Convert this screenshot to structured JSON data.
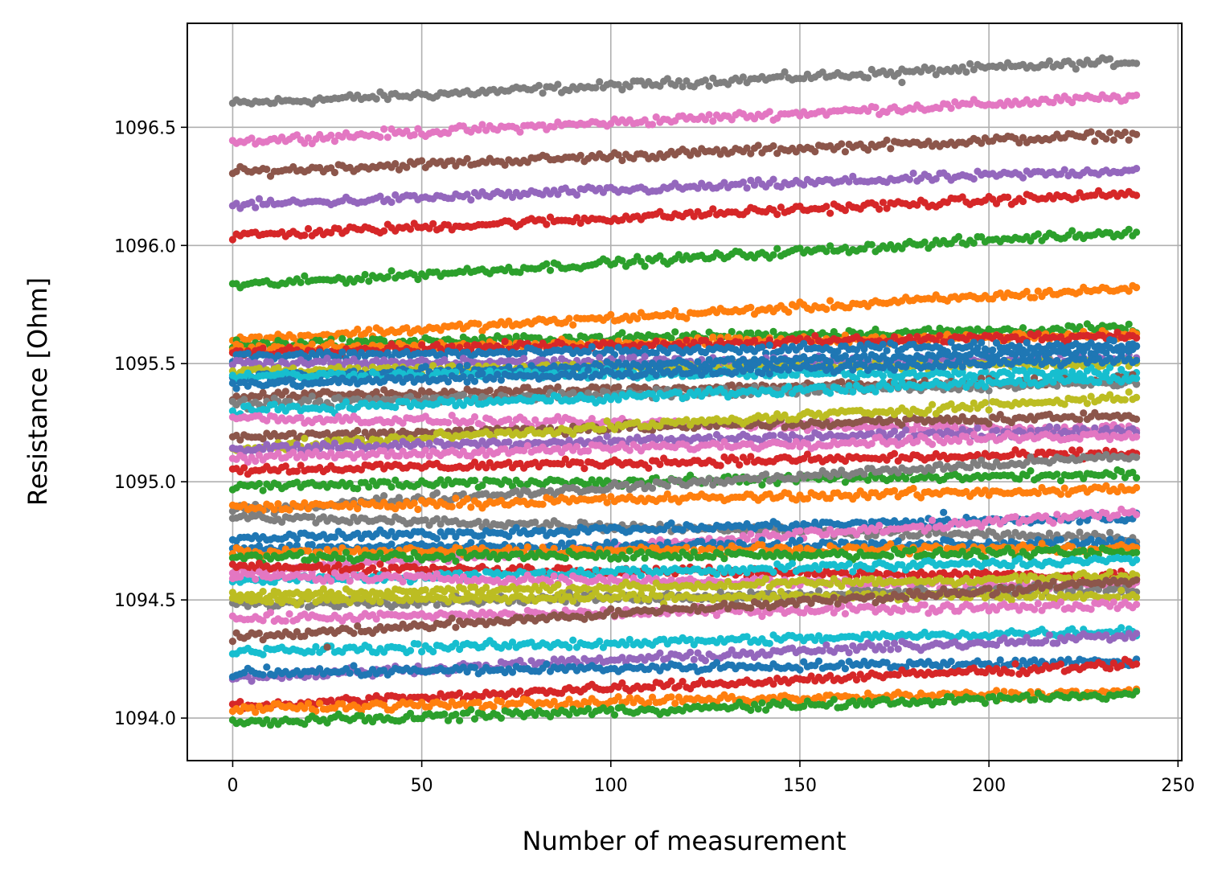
{
  "chart_data": {
    "type": "scatter",
    "title": "",
    "xlabel": "Number of measurement",
    "ylabel": "Resistance [Ohm]",
    "xlim": [
      -12,
      251
    ],
    "ylim": [
      1093.82,
      1096.94
    ],
    "xticks": [
      0,
      50,
      100,
      150,
      200,
      250
    ],
    "xtick_labels": [
      "0",
      "50",
      "100",
      "150",
      "200",
      "250"
    ],
    "yticks": [
      1094.0,
      1094.5,
      1095.0,
      1095.5,
      1096.0,
      1096.5
    ],
    "ytick_labels": [
      "1094.0",
      "1094.5",
      "1095.0",
      "1095.5",
      "1096.0",
      "1096.5"
    ],
    "grid": true,
    "legend": "none",
    "n_points_per_series": 240,
    "x_range": [
      0,
      239
    ],
    "series": [
      {
        "color": "#7f7f7f",
        "start": 1096.6,
        "end": 1096.78
      },
      {
        "color": "#e377c2",
        "start": 1096.44,
        "end": 1096.63
      },
      {
        "color": "#8c564b",
        "start": 1096.31,
        "end": 1096.47
      },
      {
        "color": "#9467bd",
        "start": 1096.17,
        "end": 1096.32
      },
      {
        "color": "#d62728",
        "start": 1096.04,
        "end": 1096.22
      },
      {
        "color": "#2ca02c",
        "start": 1095.83,
        "end": 1096.06
      },
      {
        "color": "#ff7f0e",
        "start": 1095.6,
        "end": 1095.82
      },
      {
        "color": "#2ca02c",
        "start": 1095.58,
        "end": 1095.65
      },
      {
        "color": "#ff7f0e",
        "start": 1095.56,
        "end": 1095.62
      },
      {
        "color": "#d62728",
        "start": 1095.55,
        "end": 1095.62
      },
      {
        "color": "#1f77b4",
        "start": 1095.53,
        "end": 1095.58
      },
      {
        "color": "#9467bd",
        "start": 1095.5,
        "end": 1095.52
      },
      {
        "color": "#bcbd22",
        "start": 1095.47,
        "end": 1095.5
      },
      {
        "color": "#1f77b4",
        "start": 1095.44,
        "end": 1095.56
      },
      {
        "color": "#17becf",
        "start": 1095.45,
        "end": 1095.46
      },
      {
        "color": "#1f77b4",
        "start": 1095.41,
        "end": 1095.52
      },
      {
        "color": "#8c564b",
        "start": 1095.36,
        "end": 1095.43
      },
      {
        "color": "#7f7f7f",
        "start": 1095.33,
        "end": 1095.42
      },
      {
        "color": "#17becf",
        "start": 1095.3,
        "end": 1095.44
      },
      {
        "color": "#e377c2",
        "start": 1095.27,
        "end": 1095.22
      },
      {
        "color": "#8c564b",
        "start": 1095.19,
        "end": 1095.28
      },
      {
        "color": "#bcbd22",
        "start": 1095.14,
        "end": 1095.36
      },
      {
        "color": "#9467bd",
        "start": 1095.14,
        "end": 1095.22
      },
      {
        "color": "#e377c2",
        "start": 1095.1,
        "end": 1095.2
      },
      {
        "color": "#d62728",
        "start": 1095.05,
        "end": 1095.12
      },
      {
        "color": "#2ca02c",
        "start": 1094.98,
        "end": 1095.03
      },
      {
        "color": "#7f7f7f",
        "start": 1094.88,
        "end": 1095.11
      },
      {
        "color": "#ff7f0e",
        "start": 1094.89,
        "end": 1094.97
      },
      {
        "color": "#7f7f7f",
        "start": 1094.85,
        "end": 1094.76
      },
      {
        "color": "#1f77b4",
        "start": 1094.76,
        "end": 1094.85
      },
      {
        "color": "#e377c2",
        "start": 1094.62,
        "end": 1094.87
      },
      {
        "color": "#1f77b4",
        "start": 1094.72,
        "end": 1094.74
      },
      {
        "color": "#ff7f0e",
        "start": 1094.7,
        "end": 1094.72
      },
      {
        "color": "#2ca02c",
        "start": 1094.68,
        "end": 1094.7
      },
      {
        "color": "#d62728",
        "start": 1094.64,
        "end": 1094.6
      },
      {
        "color": "#17becf",
        "start": 1094.58,
        "end": 1094.67
      },
      {
        "color": "#e377c2",
        "start": 1094.6,
        "end": 1094.56
      },
      {
        "color": "#bcbd22",
        "start": 1094.52,
        "end": 1094.6
      },
      {
        "color": "#7f7f7f",
        "start": 1094.48,
        "end": 1094.55
      },
      {
        "color": "#bcbd22",
        "start": 1094.5,
        "end": 1094.52
      },
      {
        "color": "#e377c2",
        "start": 1094.42,
        "end": 1094.48
      },
      {
        "color": "#8c564b",
        "start": 1094.34,
        "end": 1094.58
      },
      {
        "color": "#17becf",
        "start": 1094.28,
        "end": 1094.37
      },
      {
        "color": "#9467bd",
        "start": 1094.17,
        "end": 1094.35
      },
      {
        "color": "#1f77b4",
        "start": 1094.19,
        "end": 1094.24
      },
      {
        "color": "#d62728",
        "start": 1094.05,
        "end": 1094.23
      },
      {
        "color": "#ff7f0e",
        "start": 1094.04,
        "end": 1094.11
      },
      {
        "color": "#2ca02c",
        "start": 1093.98,
        "end": 1094.1
      }
    ],
    "outliers": [
      {
        "x": 188,
        "y": 1094.87,
        "color": "#1f77b4"
      },
      {
        "x": 177,
        "y": 1096.69,
        "color": "#7f7f7f"
      },
      {
        "x": 25,
        "y": 1094.3,
        "color": "#8c564b"
      }
    ]
  }
}
